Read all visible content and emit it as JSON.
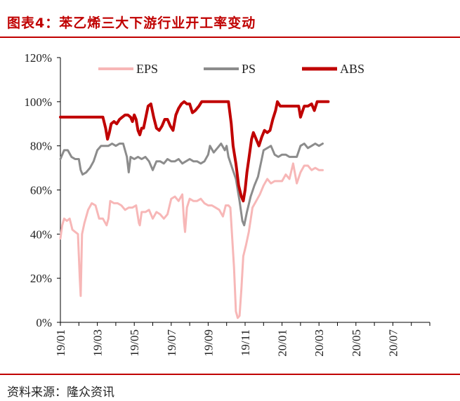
{
  "header": {
    "title": "图表4：苯乙烯三大下游行业开工率变动"
  },
  "footer": {
    "source": "资料来源：隆众资讯"
  },
  "chart_data": {
    "type": "line",
    "title": "图表4：苯乙烯三大下游行业开工率变动",
    "xlabel": "",
    "ylabel": "",
    "ylim": [
      0,
      120
    ],
    "yticks": [
      "0%",
      "20%",
      "40%",
      "60%",
      "80%",
      "100%",
      "120%"
    ],
    "x_axis": {
      "start_month": "19/01",
      "end_month": "20/09",
      "tick_labels": [
        "19/01",
        "19/03",
        "19/05",
        "19/07",
        "19/09",
        "19/11",
        "20/01",
        "20/03",
        "20/05",
        "20/07"
      ]
    },
    "legend_position": "top",
    "grid": false,
    "series": [
      {
        "name": "EPS",
        "color": "#f7b7b7",
        "width": 3,
        "points": [
          [
            0.0,
            38
          ],
          [
            0.1,
            44
          ],
          [
            0.2,
            47
          ],
          [
            0.35,
            46
          ],
          [
            0.5,
            47
          ],
          [
            0.65,
            42
          ],
          [
            0.8,
            41
          ],
          [
            0.95,
            40
          ],
          [
            1.05,
            20
          ],
          [
            1.1,
            12
          ],
          [
            1.17,
            40
          ],
          [
            1.3,
            45
          ],
          [
            1.5,
            51
          ],
          [
            1.7,
            54
          ],
          [
            1.9,
            53
          ],
          [
            2.1,
            47
          ],
          [
            2.3,
            47
          ],
          [
            2.5,
            44
          ],
          [
            2.6,
            47
          ],
          [
            2.7,
            55
          ],
          [
            2.9,
            54
          ],
          [
            3.1,
            54
          ],
          [
            3.3,
            53
          ],
          [
            3.5,
            51
          ],
          [
            3.7,
            52
          ],
          [
            3.9,
            52
          ],
          [
            4.1,
            53
          ],
          [
            4.25,
            45
          ],
          [
            4.3,
            44
          ],
          [
            4.4,
            50
          ],
          [
            4.6,
            50
          ],
          [
            4.8,
            51
          ],
          [
            5.0,
            47
          ],
          [
            5.2,
            50
          ],
          [
            5.4,
            49
          ],
          [
            5.6,
            47
          ],
          [
            5.8,
            49
          ],
          [
            6.0,
            56
          ],
          [
            6.2,
            57
          ],
          [
            6.4,
            55
          ],
          [
            6.6,
            58
          ],
          [
            6.7,
            45
          ],
          [
            6.75,
            41
          ],
          [
            6.85,
            52
          ],
          [
            7.0,
            56
          ],
          [
            7.2,
            55
          ],
          [
            7.4,
            55
          ],
          [
            7.6,
            56
          ],
          [
            7.8,
            54
          ],
          [
            8.0,
            53
          ],
          [
            8.2,
            53
          ],
          [
            8.4,
            52
          ],
          [
            8.6,
            51
          ],
          [
            8.8,
            48
          ],
          [
            8.95,
            53
          ],
          [
            9.1,
            53
          ],
          [
            9.2,
            52
          ],
          [
            9.4,
            25
          ],
          [
            9.5,
            5
          ],
          [
            9.6,
            2
          ],
          [
            9.7,
            3
          ],
          [
            9.8,
            15
          ],
          [
            9.9,
            30
          ],
          [
            10.05,
            35
          ],
          [
            10.2,
            41
          ],
          [
            10.4,
            52
          ],
          [
            10.6,
            55
          ],
          [
            10.8,
            58
          ],
          [
            11.0,
            62
          ],
          [
            11.2,
            65
          ],
          [
            11.4,
            63
          ],
          [
            11.6,
            64
          ],
          [
            11.8,
            64
          ],
          [
            12.0,
            64
          ],
          [
            12.2,
            67
          ],
          [
            12.4,
            65
          ],
          [
            12.6,
            72
          ],
          [
            12.8,
            63
          ],
          [
            13.0,
            68
          ],
          [
            13.2,
            71
          ],
          [
            13.4,
            71
          ],
          [
            13.6,
            69
          ],
          [
            13.8,
            70
          ],
          [
            14.0,
            69
          ],
          [
            14.2,
            69
          ]
        ]
      },
      {
        "name": "PS",
        "color": "#8c8c8c",
        "width": 3,
        "points": [
          [
            0.0,
            74
          ],
          [
            0.2,
            78
          ],
          [
            0.4,
            78
          ],
          [
            0.6,
            75
          ],
          [
            0.8,
            74
          ],
          [
            1.0,
            74
          ],
          [
            1.1,
            69
          ],
          [
            1.2,
            67
          ],
          [
            1.4,
            68
          ],
          [
            1.6,
            70
          ],
          [
            1.8,
            73
          ],
          [
            2.0,
            78
          ],
          [
            2.2,
            80
          ],
          [
            2.4,
            80
          ],
          [
            2.6,
            80
          ],
          [
            2.8,
            81
          ],
          [
            3.0,
            80
          ],
          [
            3.2,
            81
          ],
          [
            3.4,
            81
          ],
          [
            3.6,
            75
          ],
          [
            3.7,
            68
          ],
          [
            3.8,
            75
          ],
          [
            4.0,
            74
          ],
          [
            4.2,
            75
          ],
          [
            4.4,
            74
          ],
          [
            4.6,
            75
          ],
          [
            4.8,
            73
          ],
          [
            5.0,
            69
          ],
          [
            5.2,
            73
          ],
          [
            5.4,
            73
          ],
          [
            5.6,
            72
          ],
          [
            5.8,
            74
          ],
          [
            6.0,
            73
          ],
          [
            6.2,
            73
          ],
          [
            6.4,
            74
          ],
          [
            6.6,
            72
          ],
          [
            6.8,
            73
          ],
          [
            7.0,
            74
          ],
          [
            7.2,
            73
          ],
          [
            7.4,
            73
          ],
          [
            7.6,
            72
          ],
          [
            7.8,
            73
          ],
          [
            8.0,
            76
          ],
          [
            8.1,
            80
          ],
          [
            8.3,
            77
          ],
          [
            8.5,
            79
          ],
          [
            8.7,
            81
          ],
          [
            8.9,
            78
          ],
          [
            9.0,
            80
          ],
          [
            9.1,
            75
          ],
          [
            9.3,
            70
          ],
          [
            9.5,
            65
          ],
          [
            9.7,
            55
          ],
          [
            9.85,
            46
          ],
          [
            9.95,
            44
          ],
          [
            10.1,
            50
          ],
          [
            10.3,
            57
          ],
          [
            10.5,
            62
          ],
          [
            10.7,
            66
          ],
          [
            10.9,
            74
          ],
          [
            11.0,
            78
          ],
          [
            11.2,
            79
          ],
          [
            11.4,
            80
          ],
          [
            11.6,
            76
          ],
          [
            11.8,
            75
          ],
          [
            12.0,
            76
          ],
          [
            12.2,
            76
          ],
          [
            12.4,
            75
          ],
          [
            12.6,
            75
          ],
          [
            12.8,
            75
          ],
          [
            13.0,
            80
          ],
          [
            13.2,
            81
          ],
          [
            13.4,
            79
          ],
          [
            13.6,
            80
          ],
          [
            13.8,
            81
          ],
          [
            14.0,
            80
          ],
          [
            14.2,
            81
          ]
        ]
      },
      {
        "name": "ABS",
        "color": "#c00000",
        "width": 4,
        "points": [
          [
            0.0,
            93
          ],
          [
            0.5,
            93
          ],
          [
            1.0,
            93
          ],
          [
            1.5,
            93
          ],
          [
            2.0,
            93
          ],
          [
            2.3,
            93
          ],
          [
            2.45,
            88
          ],
          [
            2.55,
            83
          ],
          [
            2.65,
            86
          ],
          [
            2.75,
            90
          ],
          [
            2.9,
            91
          ],
          [
            3.05,
            90
          ],
          [
            3.2,
            92
          ],
          [
            3.35,
            93
          ],
          [
            3.5,
            94
          ],
          [
            3.65,
            94
          ],
          [
            3.8,
            93
          ],
          [
            3.9,
            91
          ],
          [
            4.0,
            94
          ],
          [
            4.1,
            92
          ],
          [
            4.2,
            87
          ],
          [
            4.3,
            85
          ],
          [
            4.4,
            88
          ],
          [
            4.5,
            88
          ],
          [
            4.6,
            92
          ],
          [
            4.75,
            98
          ],
          [
            4.9,
            99
          ],
          [
            5.05,
            93
          ],
          [
            5.2,
            88
          ],
          [
            5.35,
            87
          ],
          [
            5.5,
            89
          ],
          [
            5.65,
            92
          ],
          [
            5.8,
            92
          ],
          [
            5.95,
            89
          ],
          [
            6.1,
            87
          ],
          [
            6.25,
            94
          ],
          [
            6.4,
            97
          ],
          [
            6.55,
            99
          ],
          [
            6.7,
            100
          ],
          [
            6.85,
            99
          ],
          [
            7.0,
            99
          ],
          [
            7.15,
            95
          ],
          [
            7.3,
            96
          ],
          [
            7.5,
            98
          ],
          [
            7.65,
            100
          ],
          [
            7.85,
            100
          ],
          [
            8.0,
            100
          ],
          [
            8.3,
            100
          ],
          [
            8.6,
            100
          ],
          [
            8.9,
            100
          ],
          [
            9.1,
            100
          ],
          [
            9.25,
            90
          ],
          [
            9.35,
            80
          ],
          [
            9.5,
            72
          ],
          [
            9.65,
            62
          ],
          [
            9.8,
            57
          ],
          [
            9.9,
            55
          ],
          [
            10.0,
            60
          ],
          [
            10.1,
            68
          ],
          [
            10.2,
            74
          ],
          [
            10.35,
            83
          ],
          [
            10.45,
            86
          ],
          [
            10.6,
            83
          ],
          [
            10.75,
            80
          ],
          [
            10.9,
            84
          ],
          [
            11.05,
            87
          ],
          [
            11.2,
            86
          ],
          [
            11.35,
            87
          ],
          [
            11.5,
            92
          ],
          [
            11.65,
            96
          ],
          [
            11.75,
            100
          ],
          [
            11.9,
            98
          ],
          [
            12.1,
            98
          ],
          [
            12.3,
            98
          ],
          [
            12.5,
            98
          ],
          [
            12.7,
            98
          ],
          [
            12.9,
            98
          ],
          [
            13.0,
            93
          ],
          [
            13.2,
            98
          ],
          [
            13.4,
            98
          ],
          [
            13.6,
            99
          ],
          [
            13.75,
            96
          ],
          [
            13.9,
            100
          ],
          [
            14.05,
            100
          ],
          [
            14.2,
            100
          ],
          [
            14.5,
            100
          ]
        ]
      }
    ]
  }
}
